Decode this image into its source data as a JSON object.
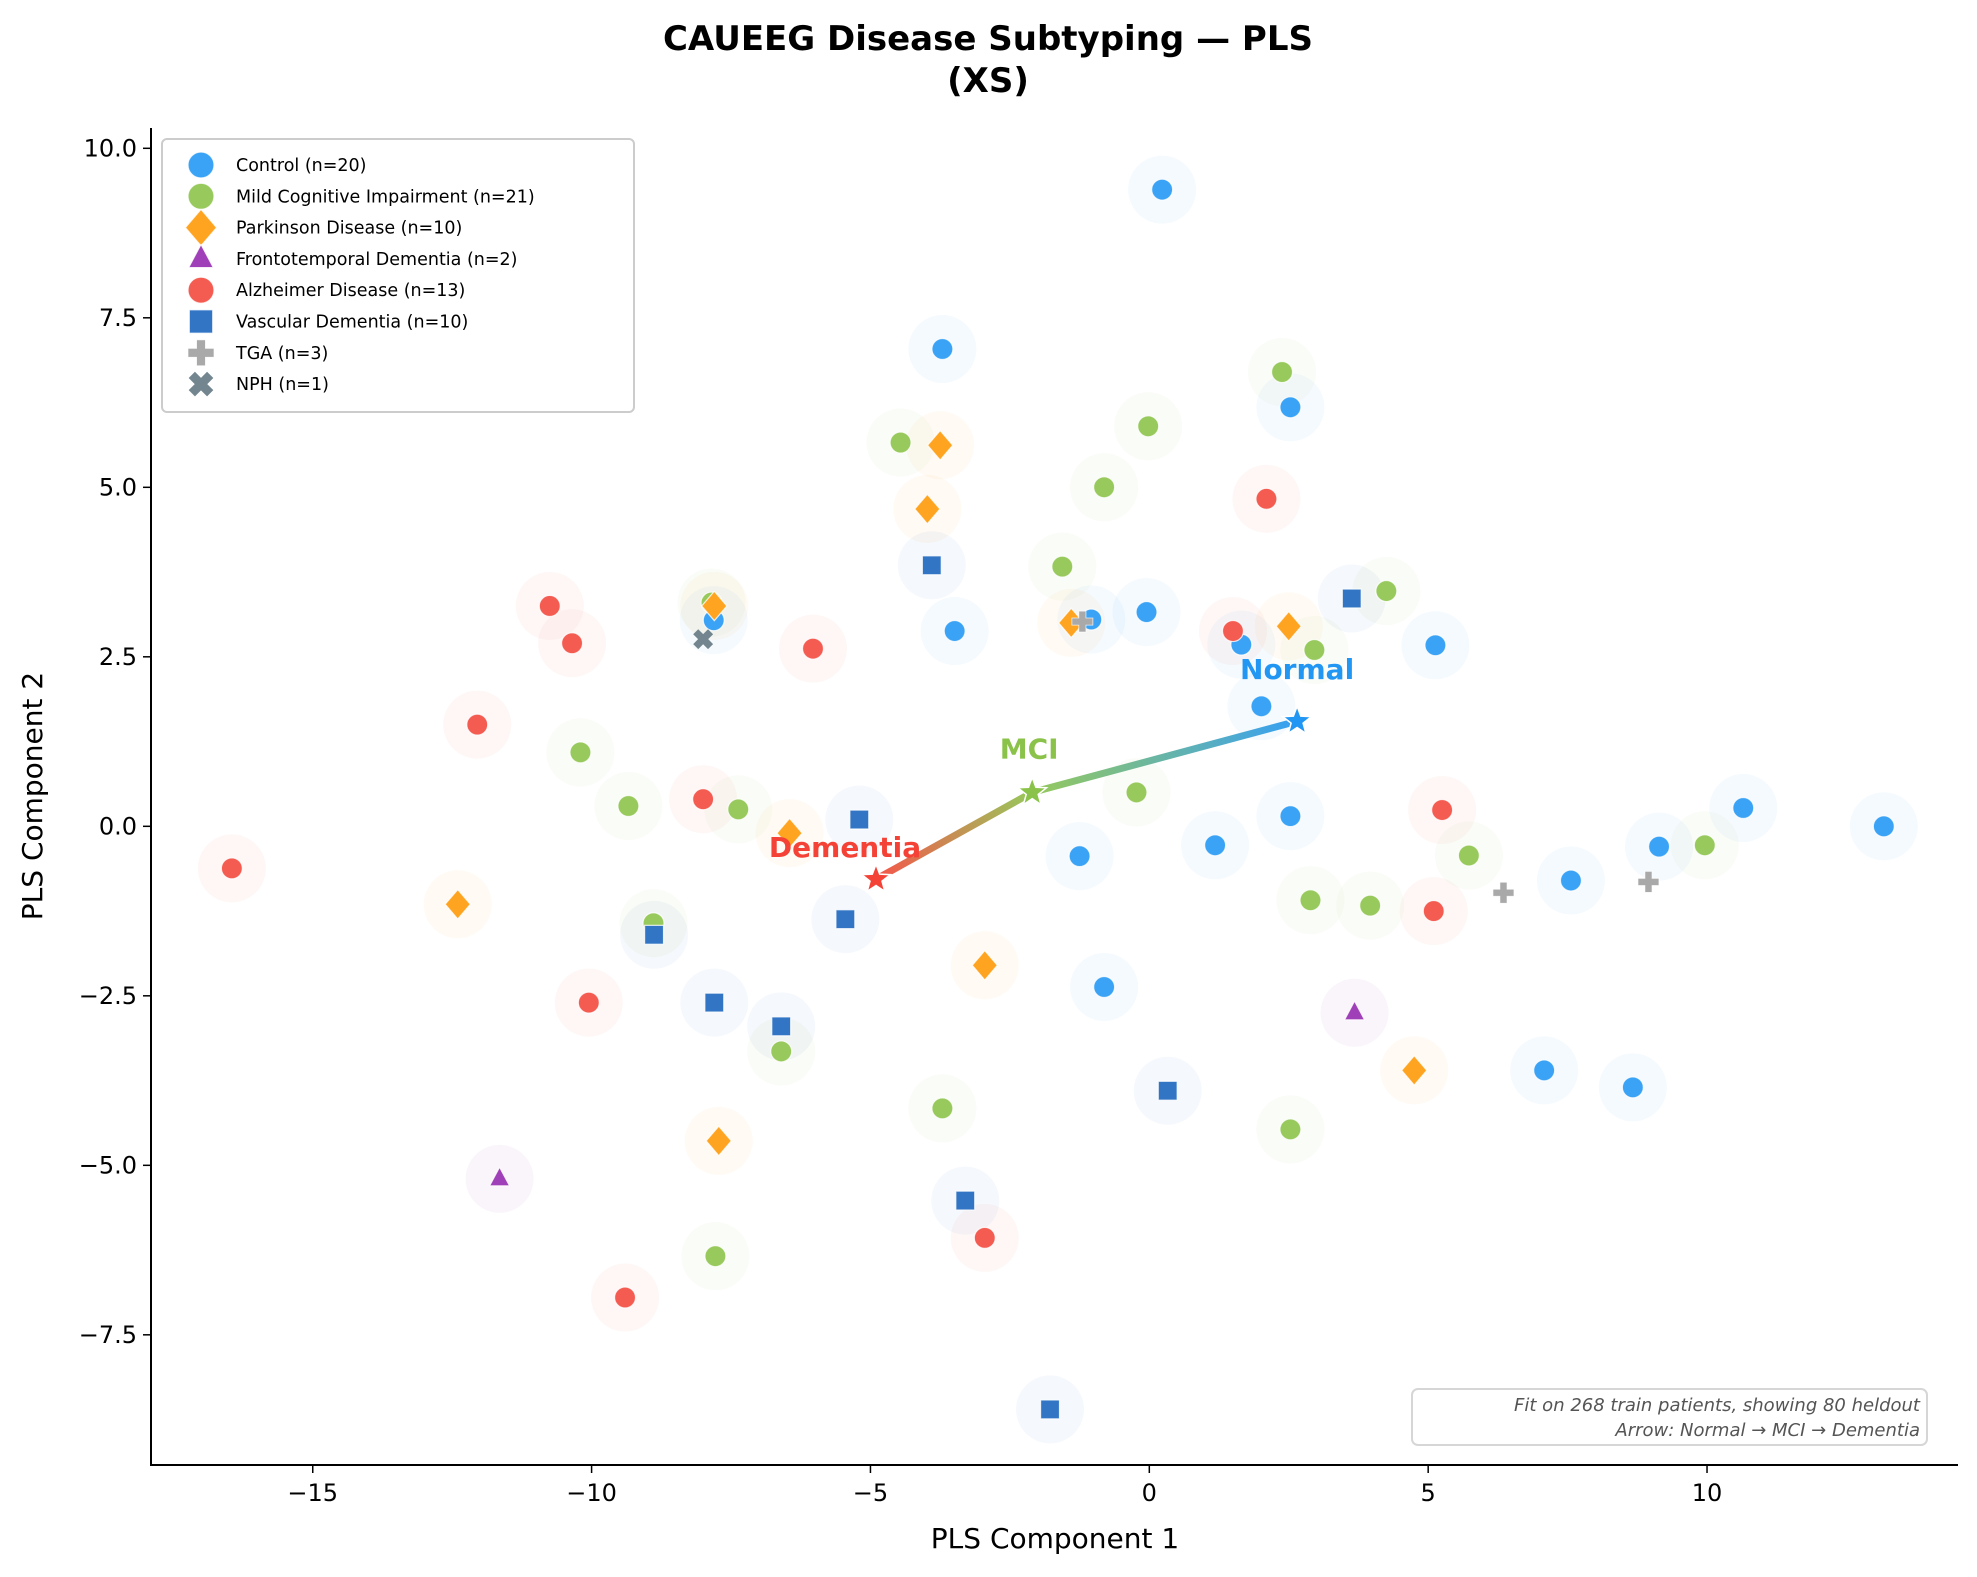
{
  "chart_data": {
    "type": "scatter",
    "title": "CAUEEG Disease Subtyping — PLS",
    "subtitle": "(XS)",
    "xlabel": "PLS Component 1",
    "ylabel": "PLS Component 2",
    "xlim": [
      -17.9,
      14.5
    ],
    "ylim": [
      -9.42,
      10.27
    ],
    "xticks": [
      -15,
      -10,
      -5,
      0,
      5,
      10
    ],
    "xtick_labels": [
      "−15",
      "−10",
      "−5",
      "0",
      "5",
      "10"
    ],
    "yticks": [
      -7.5,
      -5.0,
      -2.5,
      0.0,
      2.5,
      5.0,
      7.5,
      10.0
    ],
    "ytick_labels": [
      "−7.5",
      "−5.0",
      "−2.5",
      "0.0",
      "2.5",
      "5.0",
      "7.5",
      "10.0"
    ],
    "grid": false,
    "legend_position": "top-left",
    "series": [
      {
        "name": "Control (n=20)",
        "marker": "circle",
        "color": "#3ba3f5",
        "points": [
          [
            0.23,
            9.39
          ],
          [
            -3.71,
            7.04
          ],
          [
            2.53,
            6.18
          ],
          [
            -3.49,
            2.88
          ],
          [
            -7.81,
            3.04
          ],
          [
            -1.04,
            3.05
          ],
          [
            -0.05,
            3.16
          ],
          [
            1.65,
            2.68
          ],
          [
            5.13,
            2.67
          ],
          [
            2.01,
            1.77
          ],
          [
            2.53,
            0.15
          ],
          [
            1.18,
            -0.28
          ],
          [
            -1.25,
            -0.44
          ],
          [
            -0.81,
            -2.37
          ],
          [
            7.56,
            -0.8
          ],
          [
            9.14,
            -0.3
          ],
          [
            10.65,
            0.27
          ],
          [
            13.17,
            0.0
          ],
          [
            7.08,
            -3.6
          ],
          [
            8.67,
            -3.85
          ]
        ]
      },
      {
        "name": "Mild Cognitive Impairment (n=21)",
        "marker": "circle",
        "color": "#97c95c",
        "points": [
          [
            -4.46,
            5.66
          ],
          [
            -0.02,
            5.9
          ],
          [
            -0.81,
            5.0
          ],
          [
            -1.56,
            3.83
          ],
          [
            2.38,
            6.7
          ],
          [
            4.25,
            3.47
          ],
          [
            2.96,
            2.6
          ],
          [
            -10.2,
            1.09
          ],
          [
            -9.34,
            0.3
          ],
          [
            -7.37,
            0.25
          ],
          [
            -0.23,
            0.5
          ],
          [
            5.73,
            -0.43
          ],
          [
            9.96,
            -0.28
          ],
          [
            2.89,
            -1.09
          ],
          [
            3.96,
            -1.17
          ],
          [
            -8.89,
            -1.43
          ],
          [
            -6.6,
            -3.32
          ],
          [
            -3.71,
            -4.16
          ],
          [
            2.53,
            -4.47
          ],
          [
            -7.78,
            -6.34
          ],
          [
            -7.85,
            3.3
          ]
        ]
      },
      {
        "name": "Parkinson Disease (n=10)",
        "marker": "diamond",
        "color": "#ffa420",
        "points": [
          [
            -3.75,
            5.62
          ],
          [
            -3.98,
            4.68
          ],
          [
            -7.8,
            3.25
          ],
          [
            -1.4,
            3.0
          ],
          [
            2.5,
            2.95
          ],
          [
            -6.45,
            -0.1
          ],
          [
            -12.4,
            -1.15
          ],
          [
            -2.95,
            -2.05
          ],
          [
            4.75,
            -3.6
          ],
          [
            -7.72,
            -4.64
          ]
        ]
      },
      {
        "name": "Frontotemporal Dementia (n=2)",
        "marker": "triangle",
        "color": "#a040b8",
        "points": [
          [
            -11.65,
            -5.2
          ],
          [
            3.68,
            -2.75
          ]
        ]
      },
      {
        "name": "Alzheimer Disease (n=13)",
        "marker": "circle",
        "color": "#f45b51",
        "points": [
          [
            -10.75,
            3.25
          ],
          [
            -10.35,
            2.7
          ],
          [
            -6.03,
            2.62
          ],
          [
            -12.05,
            1.5
          ],
          [
            -8.0,
            0.4
          ],
          [
            2.1,
            4.83
          ],
          [
            1.5,
            2.88
          ],
          [
            5.25,
            0.24
          ],
          [
            5.1,
            -1.25
          ],
          [
            -16.45,
            -0.62
          ],
          [
            -10.05,
            -2.6
          ],
          [
            -9.4,
            -6.95
          ],
          [
            -2.95,
            -6.07
          ]
        ]
      },
      {
        "name": "Vascular Dementia (n=10)",
        "marker": "square",
        "color": "#3275c4",
        "points": [
          [
            -3.9,
            3.85
          ],
          [
            3.63,
            3.36
          ],
          [
            -5.2,
            0.1
          ],
          [
            -5.45,
            -1.37
          ],
          [
            -8.88,
            -1.6
          ],
          [
            -7.8,
            -2.6
          ],
          [
            -6.6,
            -2.95
          ],
          [
            0.33,
            -3.9
          ],
          [
            -3.3,
            -5.52
          ],
          [
            -1.78,
            -8.6
          ]
        ]
      },
      {
        "name": "TGA (n=3)",
        "marker": "plus",
        "color": "#a9a9a9",
        "points": [
          [
            6.35,
            -0.98
          ],
          [
            8.95,
            -0.82
          ],
          [
            -1.2,
            3.02
          ]
        ]
      },
      {
        "name": "NPH (n=1)",
        "marker": "x",
        "color": "#73868f",
        "points": [
          [
            -8.0,
            2.76
          ]
        ]
      }
    ],
    "trajectory": {
      "stages": [
        {
          "label": "Normal",
          "x": 2.65,
          "y": 1.55,
          "color": "#2196f3"
        },
        {
          "label": "MCI",
          "x": -2.1,
          "y": 0.5,
          "color": "#8bc34a"
        },
        {
          "label": "Dementia",
          "x": -4.9,
          "y": -0.78,
          "color": "#f44336"
        }
      ]
    },
    "annotation": {
      "line1": "Fit on 268 train patients, showing 80 heldout",
      "line2": "Arrow: Normal → MCI → Dementia"
    }
  }
}
